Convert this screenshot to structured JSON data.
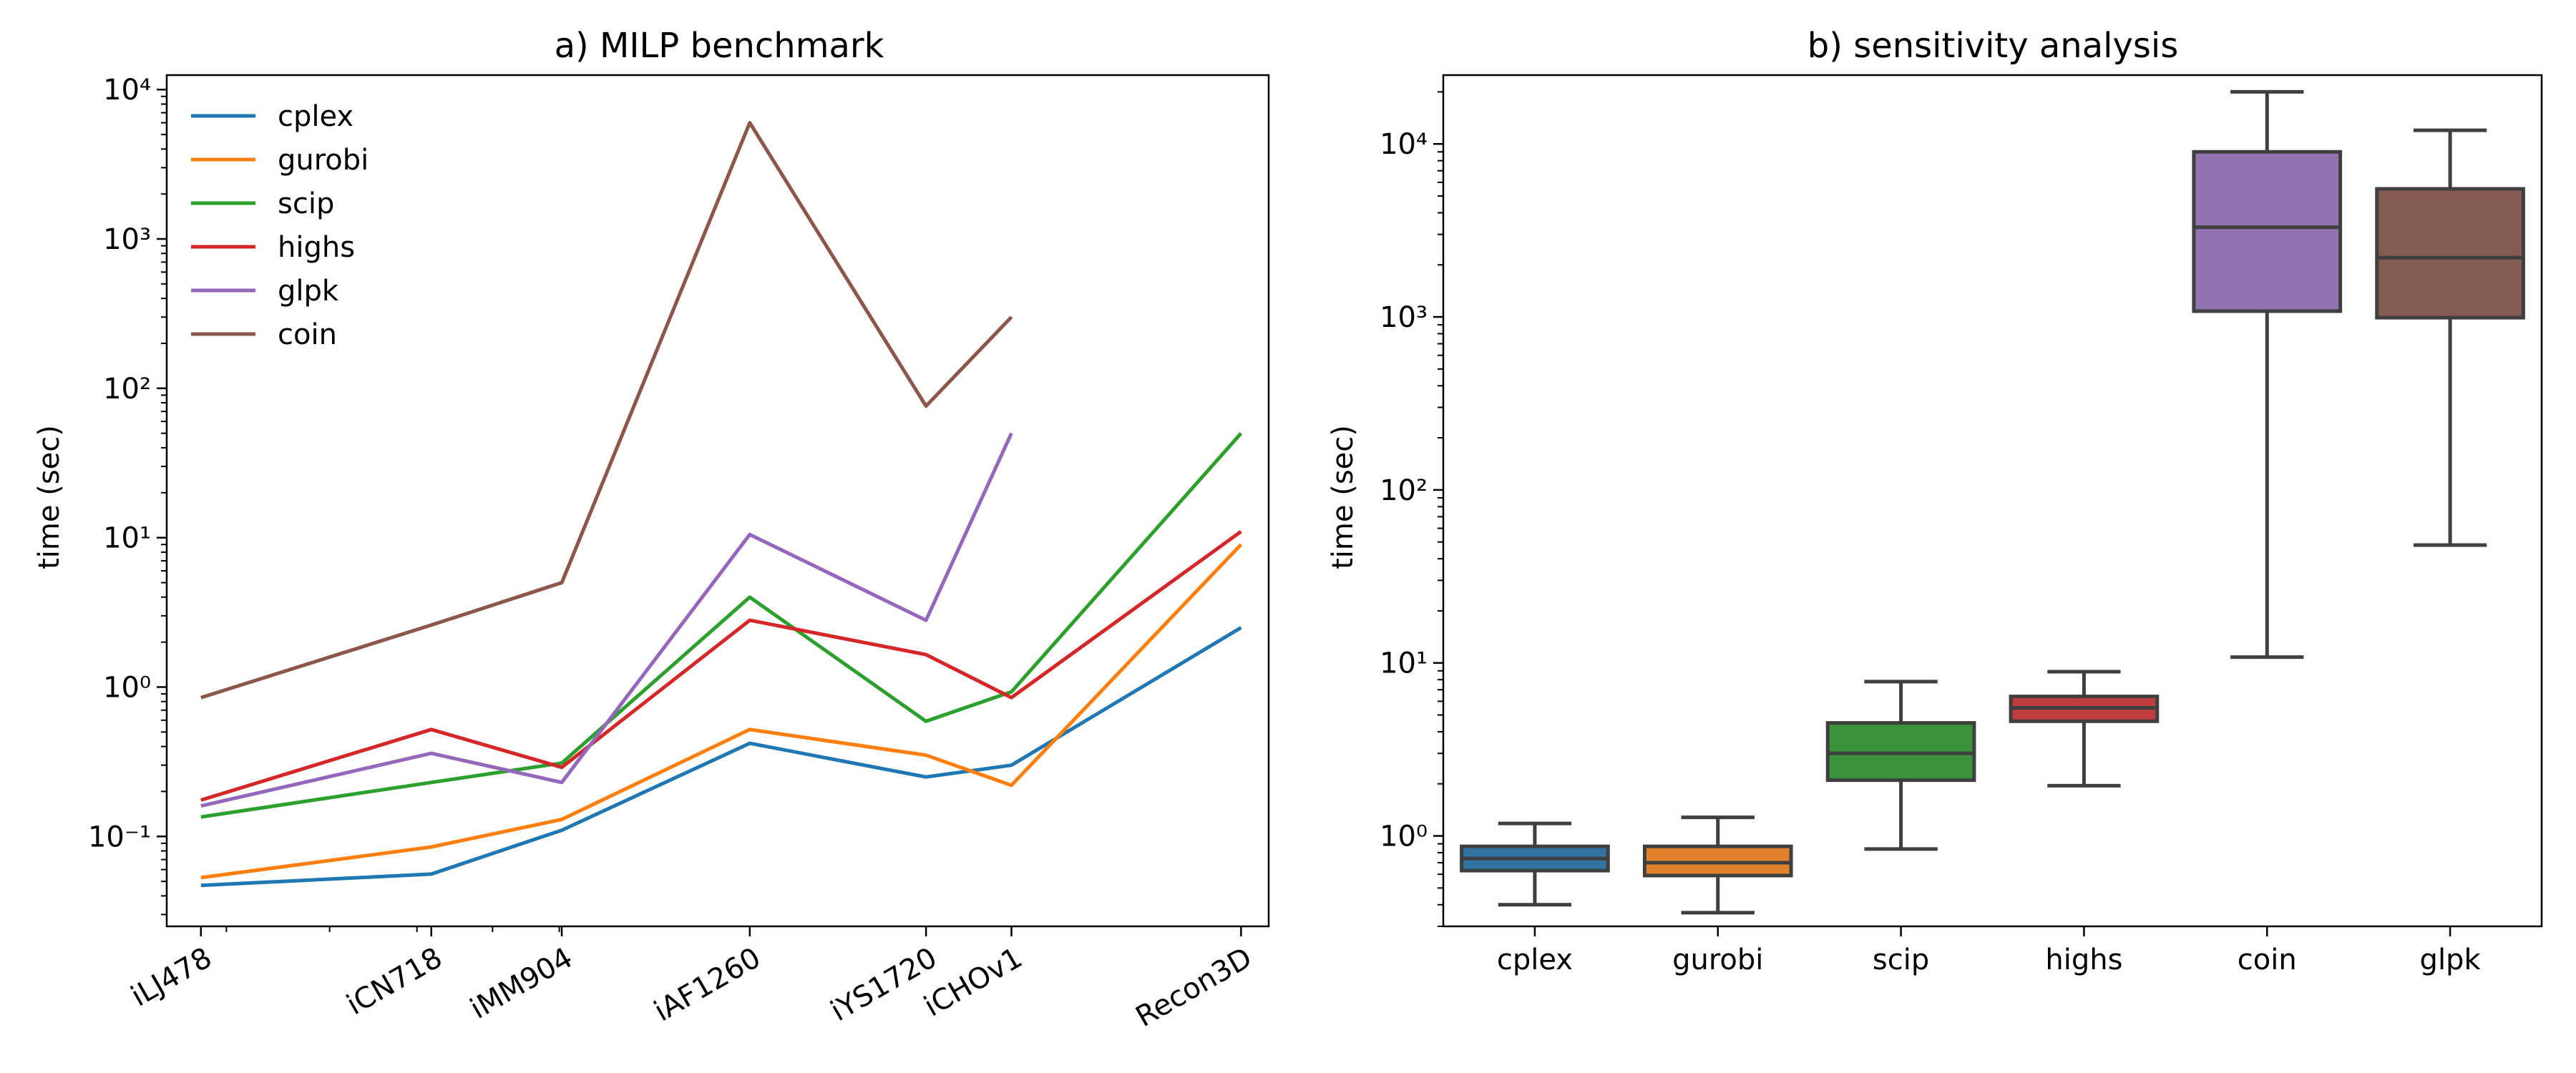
{
  "chart_data": [
    {
      "type": "line",
      "title": "a) MILP benchmark",
      "xlabel": "",
      "ylabel": "time (sec)",
      "yscale": "log",
      "ylim": [
        0.025,
        12500
      ],
      "grid": false,
      "legend": "top-left",
      "categories": [
        "iLJ478",
        "iCN718",
        "iMM904",
        "iAF1260",
        "iYS1720",
        "iCHOv1",
        "Recon3D"
      ],
      "x": [
        478,
        718,
        904,
        1260,
        1720,
        2000,
        3000
      ],
      "ytick_labels": [
        "10⁻¹",
        "10⁰",
        "10¹",
        "10²",
        "10³",
        "10⁴"
      ],
      "series": [
        {
          "name": "cplex",
          "color": "#1f77b4",
          "values": [
            0.047,
            0.056,
            0.11,
            0.42,
            0.25,
            0.3,
            2.5
          ]
        },
        {
          "name": "gurobi",
          "color": "#ff7f0e",
          "values": [
            0.053,
            0.085,
            0.13,
            0.52,
            0.35,
            0.22,
            9.0
          ]
        },
        {
          "name": "scip",
          "color": "#2ca02c",
          "values": [
            0.135,
            0.23,
            0.31,
            4.0,
            0.59,
            0.93,
            50
          ]
        },
        {
          "name": "highs",
          "color": "#d62728",
          "values": [
            0.175,
            0.52,
            0.29,
            2.8,
            1.65,
            0.85,
            11
          ]
        },
        {
          "name": "glpk",
          "color": "#9467bd",
          "values": [
            0.16,
            0.36,
            0.23,
            10.5,
            2.8,
            50,
            null
          ]
        },
        {
          "name": "coin",
          "color": "#8c564b",
          "values": [
            0.85,
            2.6,
            5.0,
            6000,
            76,
            300,
            null
          ]
        }
      ]
    },
    {
      "type": "box",
      "title": "b) sensitivity analysis",
      "xlabel": "",
      "ylabel": "time (sec)",
      "yscale": "log",
      "ylim": [
        0.3,
        25000
      ],
      "grid": false,
      "ytick_labels": [
        "10⁰",
        "10¹",
        "10²",
        "10³",
        "10⁴"
      ],
      "categories": [
        "cplex",
        "gurobi",
        "scip",
        "highs",
        "coin",
        "glpk"
      ],
      "boxes": [
        {
          "name": "cplex",
          "color": "#3274a1",
          "whisker_low": 0.4,
          "q1": 0.63,
          "median": 0.74,
          "q3": 0.87,
          "whisker_high": 1.18
        },
        {
          "name": "gurobi",
          "color": "#e1812c",
          "whisker_low": 0.36,
          "q1": 0.59,
          "median": 0.7,
          "q3": 0.87,
          "whisker_high": 1.28
        },
        {
          "name": "scip",
          "color": "#3a923a",
          "whisker_low": 0.84,
          "q1": 2.1,
          "median": 3.0,
          "q3": 4.5,
          "whisker_high": 7.8
        },
        {
          "name": "highs",
          "color": "#c03d3e",
          "whisker_low": 1.95,
          "q1": 4.6,
          "median": 5.5,
          "q3": 6.4,
          "whisker_high": 8.9
        },
        {
          "name": "coin",
          "color": "#9372b2",
          "whisker_low": 10.8,
          "q1": 1080,
          "median": 3300,
          "q3": 9000,
          "whisker_high": 20000
        },
        {
          "name": "glpk",
          "color": "#845b53",
          "whisker_low": 48,
          "q1": 990,
          "median": 2200,
          "q3": 5500,
          "whisker_high": 12000
        }
      ]
    }
  ]
}
